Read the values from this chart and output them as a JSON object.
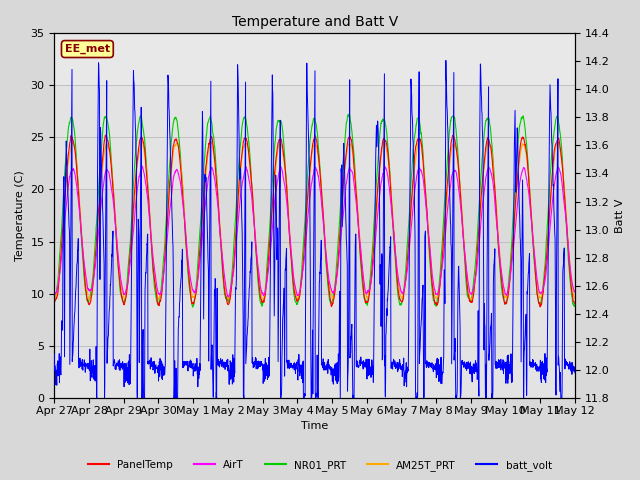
{
  "title": "Temperature and Batt V",
  "ylabel_left": "Temperature (C)",
  "ylabel_right": "Batt V",
  "xlabel": "Time",
  "annotation": "EE_met",
  "ylim_left": [
    0,
    35
  ],
  "ylim_right": [
    11.8,
    14.4
  ],
  "yticks_left": [
    0,
    5,
    10,
    15,
    20,
    25,
    30,
    35
  ],
  "yticks_right": [
    11.8,
    12.0,
    12.2,
    12.4,
    12.6,
    12.8,
    13.0,
    13.2,
    13.4,
    13.6,
    13.8,
    14.0,
    14.2,
    14.4
  ],
  "xtick_labels": [
    "Apr 27",
    "Apr 28",
    "Apr 29",
    "Apr 30",
    "May 1",
    "May 2",
    "May 3",
    "May 4",
    "May 5",
    "May 6",
    "May 7",
    "May 8",
    "May 9",
    "May 10",
    "May 11",
    "May 12"
  ],
  "series_colors": {
    "PanelTemp": "#ff0000",
    "AirT": "#ff00ff",
    "NR01_PRT": "#00cc00",
    "AM25T_PRT": "#ffaa00",
    "batt_volt": "#0000ff"
  },
  "legend_labels": [
    "PanelTemp",
    "AirT",
    "NR01_PRT",
    "AM25T_PRT",
    "batt_volt"
  ],
  "grid_color": "#c0c0c0",
  "background_color": "#d8d8d8",
  "plot_bg_color": "#e8e8e8",
  "annotation_bg": "#ffff99",
  "annotation_fg": "#880000",
  "n_days": 15,
  "pts_per_day": 144
}
